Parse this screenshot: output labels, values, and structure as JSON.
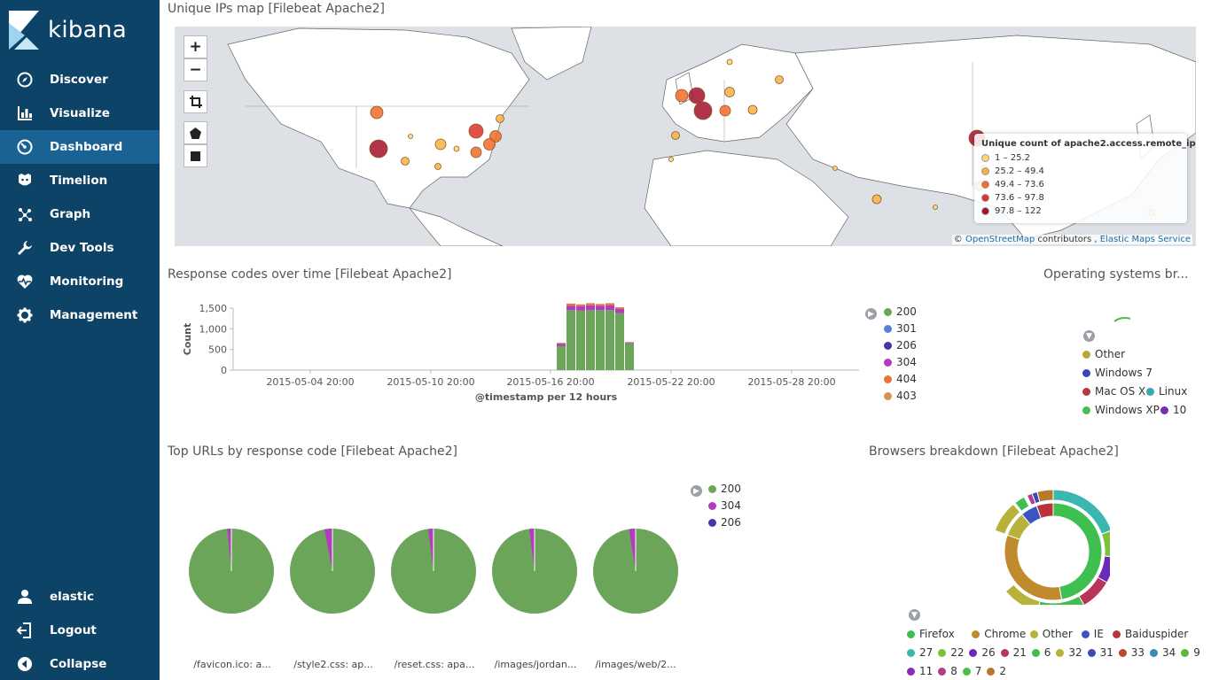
{
  "sidebar": {
    "brand": "kibana",
    "items": [
      {
        "label": "Discover",
        "icon": "compass-icon"
      },
      {
        "label": "Visualize",
        "icon": "bar-chart-icon"
      },
      {
        "label": "Dashboard",
        "icon": "dashboard-icon",
        "active": true
      },
      {
        "label": "Timelion",
        "icon": "timelion-icon"
      },
      {
        "label": "Graph",
        "icon": "graph-icon"
      },
      {
        "label": "Dev Tools",
        "icon": "wrench-icon"
      },
      {
        "label": "Monitoring",
        "icon": "heartbeat-icon"
      },
      {
        "label": "Management",
        "icon": "gear-icon"
      }
    ],
    "bottom": [
      {
        "label": "elastic",
        "icon": "user-icon"
      },
      {
        "label": "Logout",
        "icon": "logout-icon"
      },
      {
        "label": "Collapse",
        "icon": "collapse-icon"
      }
    ]
  },
  "map_panel": {
    "title": "Unique IPs map [Filebeat Apache2]",
    "zoom_in": "+",
    "zoom_out": "−",
    "legend_title": "Unique count of apache2.access.remote_ip",
    "legend": [
      {
        "label": "1 – 25.2",
        "color": "#fdd86a"
      },
      {
        "label": "25.2 – 49.4",
        "color": "#fbb040"
      },
      {
        "label": "49.4 – 73.6",
        "color": "#f26b28"
      },
      {
        "label": "73.6 – 97.8",
        "color": "#e0302a"
      },
      {
        "label": "97.8 – 122",
        "color": "#a5102a"
      }
    ],
    "attribution_prefix": "©",
    "attribution_osm": "OpenStreetMap",
    "attribution_mid": "contributors ,",
    "attribution_ems": "Elastic Maps Service"
  },
  "response_panel": {
    "title": "Response codes over time [Filebeat Apache2]",
    "legend": [
      {
        "label": "200",
        "color": "#6ba559"
      },
      {
        "label": "301",
        "color": "#5a7fd6"
      },
      {
        "label": "206",
        "color": "#4a32a8"
      },
      {
        "label": "304",
        "color": "#b23bbf"
      },
      {
        "label": "404",
        "color": "#e6753a"
      },
      {
        "label": "403",
        "color": "#d99350"
      }
    ]
  },
  "chart_data": {
    "type": "bar",
    "ylabel": "Count",
    "xlabel": "@timestamp per 12 hours",
    "ylim": [
      0,
      1500
    ],
    "yticks": [
      "1,500",
      "1,000",
      "500",
      "0"
    ],
    "xticks": [
      "2015-05-04 20:00",
      "2015-05-10 20:00",
      "2015-05-16 20:00",
      "2015-05-22 20:00",
      "2015-05-28 20:00"
    ],
    "x": [
      "2015-05-17 08:00",
      "2015-05-17 20:00",
      "2015-05-18 08:00",
      "2015-05-18 20:00",
      "2015-05-19 08:00",
      "2015-05-19 20:00",
      "2015-05-20 08:00",
      "2015-05-20 20:00"
    ],
    "series": [
      {
        "name": "200",
        "values": [
          580,
          1450,
          1440,
          1450,
          1450,
          1450,
          1380,
          650
        ]
      },
      {
        "name": "304",
        "values": [
          60,
          110,
          110,
          120,
          110,
          120,
          100,
          20
        ]
      },
      {
        "name": "404",
        "values": [
          20,
          50,
          40,
          50,
          40,
          50,
          40,
          10
        ]
      }
    ]
  },
  "os_panel": {
    "title": "Operating systems br...",
    "legend": [
      {
        "label": "Other",
        "color": "#b8a63a"
      },
      {
        "label": "Windows 7",
        "color": "#3a46b8"
      },
      {
        "label": "Mac OS X",
        "color": "#b73a3a"
      },
      {
        "label": "Linux",
        "color": "#3aa8a8"
      },
      {
        "label": "Windows XP",
        "color": "#4bbd4b"
      },
      {
        "label": "10",
        "color": "#7a2ab8"
      }
    ]
  },
  "urls_panel": {
    "title": "Top URLs by response code [Filebeat Apache2]",
    "legend": [
      {
        "label": "200",
        "color": "#6ba559"
      },
      {
        "label": "304",
        "color": "#b23bbf"
      },
      {
        "label": "206",
        "color": "#4a32a8"
      }
    ],
    "pies": [
      {
        "label": "/favicon.ico: a...",
        "share_200": 0.985
      },
      {
        "label": "/style2.css: ap...",
        "share_200": 0.97
      },
      {
        "label": "/reset.css: apa...",
        "share_200": 0.98
      },
      {
        "label": "/images/jordan...",
        "share_200": 0.98
      },
      {
        "label": "/images/web/2...",
        "share_200": 0.975
      }
    ]
  },
  "browsers_panel": {
    "title": "Browsers breakdown [Filebeat Apache2]",
    "legend": [
      {
        "label": "Firefox",
        "color": "#3fbf4f"
      },
      {
        "label": "Chrome",
        "color": "#c08a2e"
      },
      {
        "label": "Other",
        "color": "#b8b23a"
      },
      {
        "label": "IE",
        "color": "#3a55c0"
      },
      {
        "label": "Baiduspider",
        "color": "#b8343a"
      },
      {
        "label": "27",
        "color": "#3ab8b0"
      },
      {
        "label": "22",
        "color": "#7ec03a"
      },
      {
        "label": "26",
        "color": "#6a2ab8"
      },
      {
        "label": "21",
        "color": "#b8345a"
      },
      {
        "label": "6",
        "color": "#3fbf4f"
      },
      {
        "label": "32",
        "color": "#b8b23a"
      },
      {
        "label": "31",
        "color": "#3a4ab8"
      },
      {
        "label": "33",
        "color": "#b84a2a"
      },
      {
        "label": "34",
        "color": "#3a8ab8"
      },
      {
        "label": "9",
        "color": "#5ab83a"
      },
      {
        "label": "11",
        "color": "#8a2ab8"
      },
      {
        "label": "8",
        "color": "#b83a8a"
      },
      {
        "label": "7",
        "color": "#4bbd4b"
      },
      {
        "label": "2",
        "color": "#b87a2a"
      }
    ]
  }
}
